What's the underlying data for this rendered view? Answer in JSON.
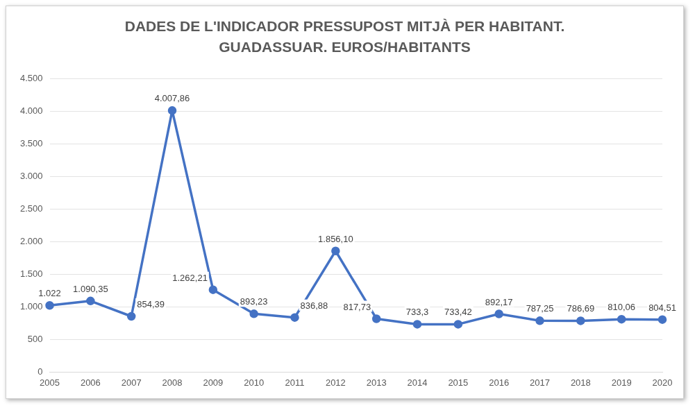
{
  "chart_data": {
    "type": "line",
    "title": "DADES DE L'INDICADOR PRESSUPOST MITJÀ PER HABITANT. GUADASSUAR. EUROS/HABITANTS",
    "categories": [
      "2005",
      "2006",
      "2007",
      "2008",
      "2009",
      "2010",
      "2011",
      "2012",
      "2013",
      "2014",
      "2015",
      "2016",
      "2017",
      "2018",
      "2019",
      "2020"
    ],
    "series": [
      {
        "color": "#4472c4",
        "values": [
          1022,
          1090.35,
          854.39,
          4007.86,
          1262.21,
          893.23,
          836.88,
          1856.1,
          817.73,
          733.3,
          733.42,
          892.17,
          787.25,
          786.69,
          810.06,
          804.51
        ],
        "value_labels": [
          "1.022",
          "1.090,35",
          "854,39",
          "4.007,86",
          "1.262,21",
          "893,23",
          "836,88",
          "1.856,10",
          "817,73",
          "733,3",
          "733,42",
          "892,17",
          "787,25",
          "786,69",
          "810,06",
          "804,51"
        ]
      }
    ],
    "ylim": [
      0,
      4500
    ],
    "yticks": [
      {
        "value": 0,
        "label": "0"
      },
      {
        "value": 500,
        "label": "500"
      },
      {
        "value": 1000,
        "label": "1.000"
      },
      {
        "value": 1500,
        "label": "1.500"
      },
      {
        "value": 2000,
        "label": "2.000"
      },
      {
        "value": 2500,
        "label": "2.500"
      },
      {
        "value": 3000,
        "label": "3.000"
      },
      {
        "value": 3500,
        "label": "3.500"
      },
      {
        "value": 4000,
        "label": "4.000"
      },
      {
        "value": 4500,
        "label": "4.500"
      }
    ],
    "grid": "y",
    "marker": "circle",
    "line_style": "solid",
    "legend": false
  }
}
